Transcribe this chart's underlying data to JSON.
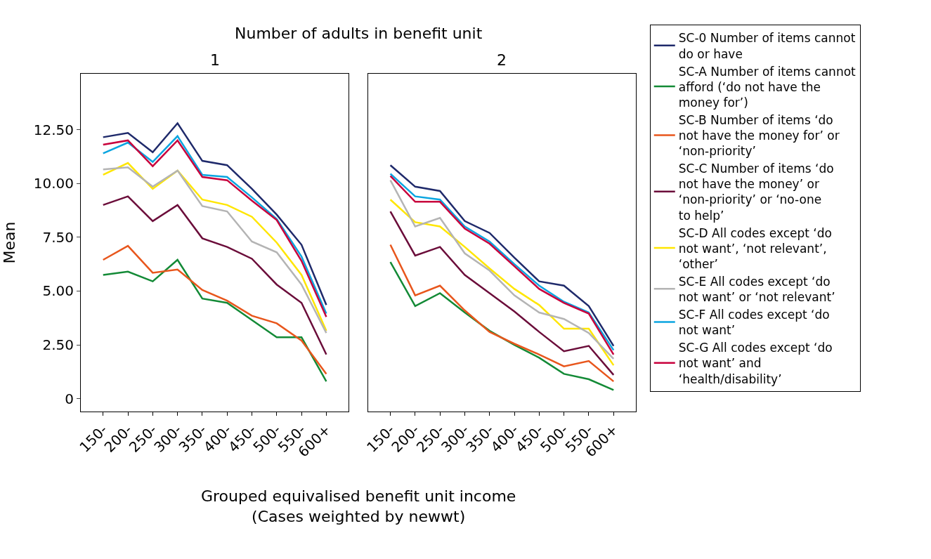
{
  "chart_data": [
    {
      "type": "line",
      "title": "Number of adults in benefit unit",
      "subtitle": "1",
      "xlabel": "Grouped equivalised benefit unit income\n(Cases weighted by newwt)",
      "ylabel": "Mean",
      "categories": [
        "150-",
        "200-",
        "250-",
        "300-",
        "350-",
        "400-",
        "450-",
        "500-",
        "550-",
        "600+"
      ],
      "ylim": [
        -0.6,
        15.1
      ],
      "yticks": [
        0,
        {
          "value": 2.5,
          "label": "2.50"
        },
        {
          "value": 5,
          "label": "5.00"
        },
        {
          "value": 7.5,
          "label": "7.50"
        },
        {
          "value": 10,
          "label": "10.00"
        },
        {
          "value": 12.5,
          "label": "12.50"
        }
      ],
      "legend": "right",
      "series": [
        {
          "name": "SC-0 Number of items cannot do or have",
          "color": "#1f2a6b",
          "values": [
            12.15,
            12.35,
            11.45,
            12.8,
            11.05,
            10.85,
            9.75,
            8.55,
            7.15,
            4.35
          ]
        },
        {
          "name": "SC-A Number of items cannot afford (‘do not have the money for’)",
          "color": "#138a36",
          "values": [
            5.75,
            5.9,
            5.45,
            6.45,
            4.65,
            4.45,
            3.65,
            2.85,
            2.85,
            0.8
          ]
        },
        {
          "name": "SC-B Number of items ‘do not have the money for’ or ‘non-priority’",
          "color": "#e8561c",
          "values": [
            6.45,
            7.1,
            5.85,
            6.0,
            5.05,
            4.55,
            3.85,
            3.5,
            2.7,
            1.15
          ]
        },
        {
          "name": "SC-C Number of items ‘do not have the money’ or ‘non-priority’ or ‘no-one to help’",
          "color": "#6b0d3a",
          "values": [
            9.0,
            9.4,
            8.25,
            9.0,
            7.45,
            7.05,
            6.5,
            5.3,
            4.45,
            2.05
          ]
        },
        {
          "name": "SC-D All codes except ‘do not want’, ‘not relevant’, ‘other’",
          "color": "#ffe600",
          "values": [
            10.4,
            10.95,
            9.75,
            10.6,
            9.25,
            9.0,
            8.45,
            7.25,
            5.75,
            3.15
          ]
        },
        {
          "name": "SC-E All codes except ‘do not want’ or ‘not relevant’",
          "color": "#b4b4b4",
          "values": [
            10.65,
            10.75,
            9.85,
            10.6,
            8.95,
            8.7,
            7.3,
            6.8,
            5.3,
            3.05
          ]
        },
        {
          "name": "SC-F All codes except ‘do not want’",
          "color": "#0aa5e0",
          "values": [
            11.4,
            11.9,
            11.0,
            12.2,
            10.4,
            10.3,
            9.35,
            8.35,
            6.6,
            3.95
          ]
        },
        {
          "name": "SC-G All codes except ‘do not want’ and ‘health/disability’",
          "color": "#c8003c",
          "values": [
            11.8,
            12.0,
            10.8,
            12.0,
            10.3,
            10.15,
            9.2,
            8.3,
            6.4,
            3.8
          ]
        }
      ]
    },
    {
      "type": "line",
      "subtitle": "2",
      "categories": [
        "150-",
        "200-",
        "250-",
        "300-",
        "350-",
        "400-",
        "450-",
        "500-",
        "550-",
        "600+"
      ],
      "ylim": [
        -0.6,
        15.1
      ],
      "tick_labels": "x",
      "series": [
        {
          "color": "#1f2a6b",
          "values": [
            10.85,
            9.85,
            9.65,
            8.25,
            7.7,
            6.55,
            5.45,
            5.25,
            4.3,
            2.45
          ]
        },
        {
          "color": "#138a36",
          "values": [
            6.35,
            4.3,
            4.9,
            4.0,
            3.15,
            2.5,
            1.9,
            1.15,
            0.9,
            0.4
          ]
        },
        {
          "color": "#e8561c",
          "values": [
            7.15,
            4.8,
            5.25,
            4.1,
            3.1,
            2.55,
            2.05,
            1.5,
            1.75,
            0.8
          ]
        },
        {
          "color": "#6b0d3a",
          "values": [
            8.7,
            6.65,
            7.05,
            5.75,
            4.9,
            4.05,
            3.1,
            2.2,
            2.45,
            1.1
          ]
        },
        {
          "color": "#ffe600",
          "values": [
            9.25,
            8.2,
            8.0,
            7.05,
            6.05,
            5.1,
            4.35,
            3.25,
            3.25,
            1.55
          ]
        },
        {
          "color": "#b4b4b4",
          "values": [
            10.15,
            8.0,
            8.4,
            6.75,
            5.95,
            4.8,
            4.0,
            3.7,
            3.05,
            1.85
          ]
        },
        {
          "color": "#0aa5e0",
          "values": [
            10.45,
            9.4,
            9.25,
            8.0,
            7.3,
            6.25,
            5.25,
            4.5,
            4.0,
            2.25
          ]
        },
        {
          "color": "#c8003c",
          "values": [
            10.35,
            9.15,
            9.15,
            7.9,
            7.2,
            6.15,
            5.1,
            4.45,
            3.95,
            2.05
          ]
        }
      ]
    }
  ]
}
